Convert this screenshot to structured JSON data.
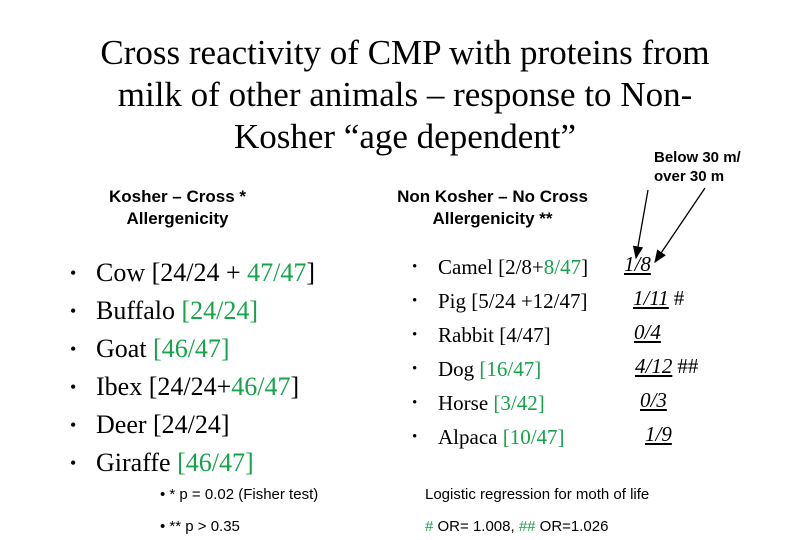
{
  "title": [
    "Cross reactivity of CMP with proteins from",
    "milk of other animals – response to Non-",
    "Kosher “age dependent”"
  ],
  "note": [
    "Below 30 m/",
    "over 30 m"
  ],
  "kosher": {
    "header": [
      "Kosher – Cross *",
      "Allergenicity"
    ],
    "items": [
      {
        "name": "Cow",
        "plain": "[24/24 + ",
        "green": "47/47",
        "close": "]"
      },
      {
        "name": "Buffalo",
        "plain": "",
        "green": "[24/24]",
        "close": ""
      },
      {
        "name": "Goat",
        "plain": "",
        "green": "[46/47]",
        "close": ""
      },
      {
        "name": "Ibex",
        "plain": "[24/24+",
        "green": "46/47",
        "close": "]"
      },
      {
        "name": "Deer",
        "plain": "[24/24]",
        "green": "",
        "close": ""
      },
      {
        "name": "Giraffe",
        "plain": "",
        "green": "[46/47]",
        "close": ""
      }
    ]
  },
  "nonkosher": {
    "header": [
      "Non Kosher – No Cross",
      "Allergenicity **"
    ],
    "items": [
      {
        "name": "Camel",
        "plain": "[2/8+",
        "green": "8/47",
        "close": "]"
      },
      {
        "name": "Pig",
        "plain": "[5/24 +12/47]",
        "green": "",
        "close": ""
      },
      {
        "name": "Rabbit",
        "plain": "[4/47]",
        "green": "",
        "close": ""
      },
      {
        "name": "Dog",
        "plain": "",
        "green": "[16/47]",
        "close": ""
      },
      {
        "name": "Horse",
        "plain": "",
        "green": "[3/42]",
        "close": ""
      },
      {
        "name": "Alpaca",
        "plain": "",
        "green": "[10/47]",
        "close": ""
      }
    ],
    "ratios": [
      {
        "value": "1/8",
        "mark": ""
      },
      {
        "value": "1/11",
        "mark": "#"
      },
      {
        "value": "0/4",
        "mark": ""
      },
      {
        "value": "4/12",
        "mark": "##"
      },
      {
        "value": "0/3",
        "mark": ""
      },
      {
        "value": "1/9",
        "mark": ""
      }
    ]
  },
  "footnotes": {
    "kosher_p": "• * p = 0.02 (Fisher test)",
    "nonkosher_p": "• ** p > 0.35",
    "regression": "Logistic regression for moth of life",
    "or_hash": "#",
    "or1": " OR= 1.008, ",
    "or_hash2": "##",
    "or2": " OR=1.026"
  },
  "colors": {
    "accent_green": "#16a34a",
    "text": "#000000",
    "background": "#ffffff"
  }
}
